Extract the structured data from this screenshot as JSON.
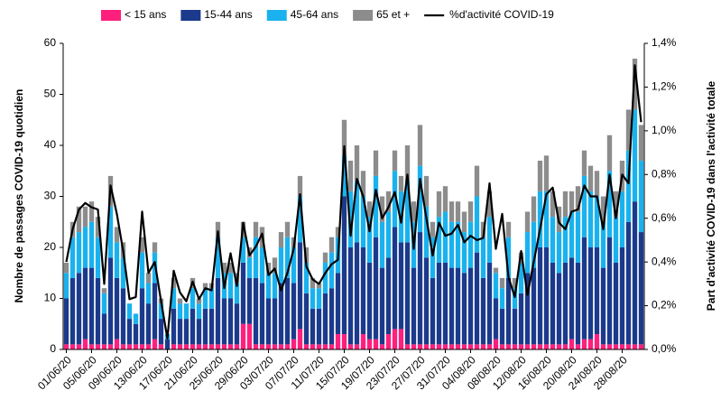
{
  "chart_data": {
    "type": "bar",
    "categories": [
      "01/06/20",
      null,
      null,
      null,
      "05/06/20",
      null,
      null,
      null,
      "09/06/20",
      null,
      null,
      null,
      "13/06/20",
      null,
      null,
      null,
      "17/06/20",
      null,
      null,
      null,
      "21/06/20",
      null,
      null,
      null,
      "25/06/20",
      null,
      null,
      null,
      "29/06/20",
      null,
      null,
      null,
      "03/07/20",
      null,
      null,
      null,
      "07/07/20",
      null,
      null,
      null,
      "11/07/20",
      null,
      null,
      null,
      "15/07/20",
      null,
      null,
      null,
      "19/07/20",
      null,
      null,
      null,
      "23/07/20",
      null,
      null,
      null,
      "27/07/20",
      null,
      null,
      null,
      "31/07/20",
      null,
      null,
      null,
      "04/08/20",
      null,
      null,
      null,
      "08/08/20",
      null,
      null,
      null,
      "12/08/20",
      null,
      null,
      null,
      "16/08/20",
      null,
      null,
      null,
      "20/08/20",
      null,
      null,
      null,
      "24/08/20",
      null,
      null,
      null,
      "28/08/20",
      null,
      null,
      null
    ],
    "series": [
      {
        "name": "< 15 ans",
        "color": "#ff1f7d",
        "values": [
          1,
          1,
          1,
          2,
          1,
          1,
          1,
          1,
          2,
          1,
          1,
          1,
          1,
          1,
          2,
          1,
          0,
          1,
          1,
          1,
          1,
          1,
          1,
          1,
          1,
          1,
          1,
          1,
          5,
          5,
          1,
          1,
          1,
          1,
          1,
          1,
          2,
          4,
          1,
          1,
          1,
          1,
          1,
          3,
          3,
          1,
          1,
          3,
          2,
          2,
          1,
          3,
          4,
          4,
          1,
          1,
          1,
          1,
          1,
          1,
          1,
          1,
          1,
          1,
          1,
          1,
          1,
          1,
          2,
          1,
          1,
          1,
          1,
          1,
          1,
          1,
          1,
          1,
          1,
          1,
          2,
          1,
          2,
          2,
          3,
          1,
          1,
          1,
          1,
          1,
          1,
          1
        ]
      },
      {
        "name": "15-44 ans",
        "color": "#1b3a8c",
        "values": [
          9,
          13,
          14,
          14,
          15,
          13,
          6,
          17,
          12,
          11,
          5,
          4,
          11,
          8,
          11,
          5,
          2,
          7,
          5,
          5,
          7,
          5,
          7,
          7,
          13,
          9,
          9,
          8,
          12,
          9,
          13,
          12,
          9,
          9,
          12,
          13,
          11,
          17,
          10,
          7,
          7,
          10,
          11,
          12,
          27,
          19,
          20,
          17,
          15,
          20,
          15,
          15,
          20,
          17,
          20,
          15,
          22,
          17,
          13,
          16,
          16,
          15,
          15,
          14,
          15,
          18,
          13,
          16,
          8,
          7,
          13,
          7,
          10,
          14,
          15,
          19,
          19,
          16,
          14,
          16,
          16,
          16,
          20,
          18,
          17,
          15,
          21,
          16,
          19,
          24,
          28,
          22
        ]
      },
      {
        "name": "45-64 ans",
        "color": "#1ab2ee",
        "values": [
          5,
          8,
          8,
          8,
          9,
          8,
          4,
          10,
          7,
          6,
          3,
          2,
          7,
          4,
          6,
          3,
          1,
          4,
          3,
          3,
          4,
          3,
          4,
          4,
          8,
          5,
          5,
          4,
          5,
          4,
          8,
          7,
          5,
          5,
          7,
          8,
          7,
          9,
          6,
          4,
          4,
          6,
          7,
          7,
          8,
          11,
          12,
          10,
          9,
          12,
          9,
          9,
          11,
          10,
          12,
          9,
          13,
          10,
          8,
          9,
          10,
          9,
          9,
          8,
          9,
          11,
          8,
          9,
          5,
          4,
          8,
          4,
          6,
          8,
          9,
          11,
          11,
          9,
          8,
          9,
          9,
          10,
          12,
          11,
          10,
          9,
          13,
          9,
          11,
          14,
          18,
          14
        ]
      },
      {
        "name": "65 et +",
        "color": "#8c8c8c",
        "values": [
          2,
          3,
          5,
          4,
          4,
          4,
          1,
          6,
          3,
          3,
          0,
          0,
          3,
          2,
          2,
          1,
          0,
          2,
          1,
          0,
          2,
          1,
          1,
          1,
          3,
          2,
          2,
          2,
          3,
          2,
          3,
          4,
          2,
          3,
          3,
          3,
          2,
          4,
          3,
          2,
          1,
          2,
          3,
          2,
          7,
          6,
          7,
          5,
          3,
          5,
          5,
          4,
          4,
          3,
          7,
          4,
          8,
          6,
          3,
          5,
          5,
          4,
          4,
          4,
          4,
          6,
          3,
          5,
          1,
          2,
          3,
          2,
          2,
          4,
          5,
          6,
          7,
          5,
          5,
          5,
          4,
          5,
          5,
          5,
          5,
          5,
          7,
          5,
          6,
          8,
          10,
          7
        ]
      },
      {
        "name": "%d'activité COVID-19",
        "color": "#000000",
        "type": "line",
        "axis": "y2",
        "values": [
          0.4,
          0.55,
          0.64,
          0.67,
          0.65,
          0.64,
          0.3,
          0.75,
          0.62,
          0.45,
          0.23,
          0.24,
          0.63,
          0.35,
          0.4,
          0.22,
          0.05,
          0.36,
          0.26,
          0.22,
          0.31,
          0.23,
          0.28,
          0.27,
          0.54,
          0.28,
          0.44,
          0.29,
          0.58,
          0.43,
          0.47,
          0.53,
          0.34,
          0.37,
          0.27,
          0.35,
          0.46,
          0.71,
          0.38,
          0.32,
          0.3,
          0.35,
          0.39,
          0.41,
          0.93,
          0.52,
          0.78,
          0.7,
          0.54,
          0.73,
          0.6,
          0.65,
          0.72,
          0.58,
          0.8,
          0.46,
          0.78,
          0.6,
          0.43,
          0.58,
          0.52,
          0.53,
          0.57,
          0.49,
          0.52,
          0.5,
          0.51,
          0.76,
          0.46,
          0.62,
          0.33,
          0.24,
          0.45,
          0.25,
          0.4,
          0.55,
          0.71,
          0.74,
          0.58,
          0.55,
          0.63,
          0.64,
          0.75,
          0.7,
          0.7,
          0.55,
          0.8,
          0.6,
          0.8,
          0.76,
          1.3,
          1.04
        ]
      }
    ],
    "y_label": "Nombre de passages COVID-19 quotidien",
    "y2_label": "Part d'activité COVID-19 dans l'activité totale",
    "ylim": [
      0,
      60
    ],
    "yticks": [
      0,
      10,
      20,
      30,
      40,
      50,
      60
    ],
    "y2lim": [
      0,
      1.4
    ],
    "y2ticks": [
      {
        "value": 0,
        "label": "0,0%"
      },
      {
        "value": 0.2,
        "label": "0,2%"
      },
      {
        "value": 0.4,
        "label": "0,4%"
      },
      {
        "value": 0.6,
        "label": "0,6%"
      },
      {
        "value": 0.8,
        "label": "0,8%"
      },
      {
        "value": 1.0,
        "label": "1,0%"
      },
      {
        "value": 1.2,
        "label": "1,2%"
      },
      {
        "value": 1.4,
        "label": "1,4%"
      }
    ],
    "stacked": true,
    "legend": "top"
  }
}
